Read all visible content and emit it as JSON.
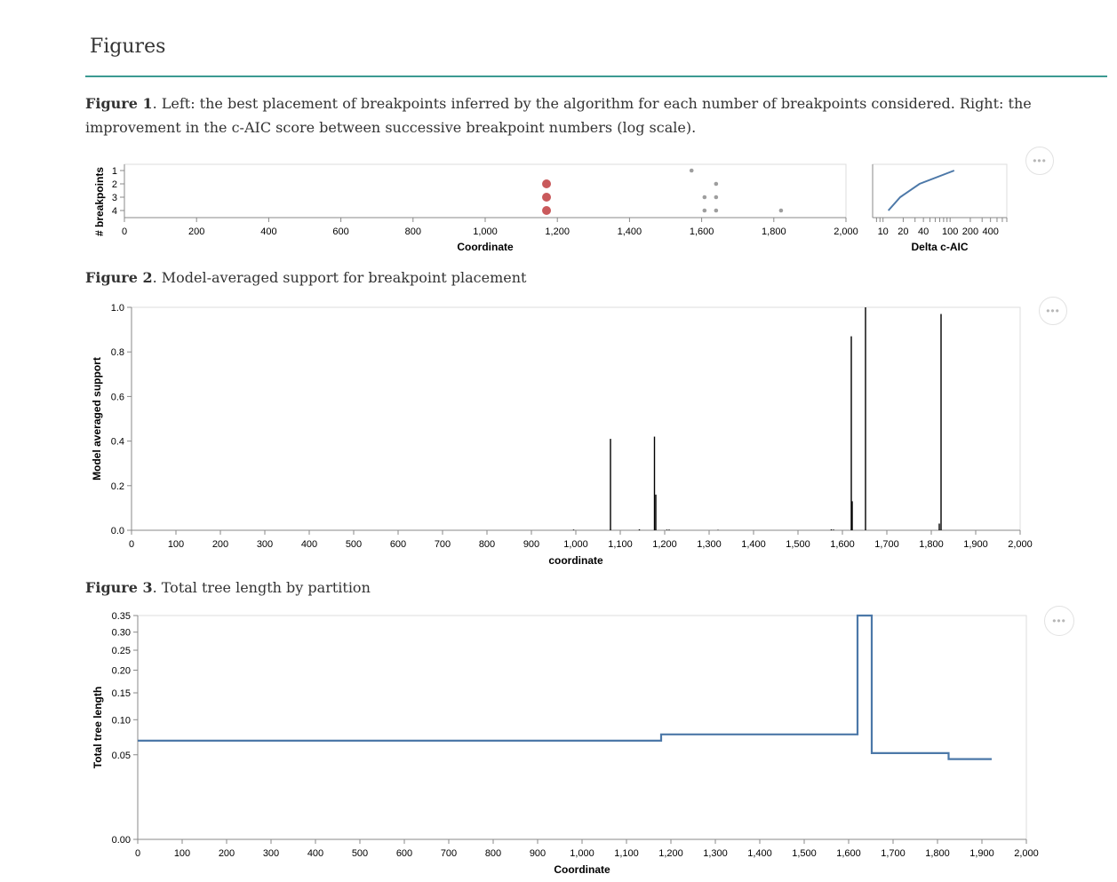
{
  "heading": "Figures",
  "figure1": {
    "label": "Figure 1",
    "caption": ". Left: the best placement of breakpoints inferred by the algorithm for each number of breakpoints considered. Right: the improvement in the c-AIC score between successive breakpoint numbers (log scale).",
    "menu_label": "•••"
  },
  "figure2": {
    "label": "Figure 2",
    "caption": ". Model-averaged support for breakpoint placement",
    "menu_label": "•••"
  },
  "figure3": {
    "label": "Figure 3",
    "caption": ". Total tree length by partition",
    "menu_label": "•••"
  },
  "chart_data": [
    {
      "type": "scatter",
      "xlabel": "Coordinate",
      "ylabel": "# breakpoints",
      "xlim": [
        0,
        2000
      ],
      "x_ticks": [
        "0",
        "200",
        "400",
        "600",
        "800",
        "1,000",
        "1,200",
        "1,400",
        "1,600",
        "1,800",
        "2,000"
      ],
      "y_ticks": [
        "1",
        "2",
        "3",
        "4"
      ],
      "points": [
        {
          "x": 1572,
          "y": 1,
          "color": "#9e9e9e",
          "size": "small"
        },
        {
          "x": 1170,
          "y": 2,
          "color": "#c9595b",
          "size": "large"
        },
        {
          "x": 1640,
          "y": 2,
          "color": "#9e9e9e",
          "size": "small"
        },
        {
          "x": 1170,
          "y": 3,
          "color": "#c9595b",
          "size": "large"
        },
        {
          "x": 1608,
          "y": 3,
          "color": "#9e9e9e",
          "size": "small"
        },
        {
          "x": 1640,
          "y": 3,
          "color": "#9e9e9e",
          "size": "small"
        },
        {
          "x": 1170,
          "y": 4,
          "color": "#c9595b",
          "size": "large"
        },
        {
          "x": 1608,
          "y": 4,
          "color": "#9e9e9e",
          "size": "small"
        },
        {
          "x": 1640,
          "y": 4,
          "color": "#9e9e9e",
          "size": "small"
        },
        {
          "x": 1820,
          "y": 4,
          "color": "#9e9e9e",
          "size": "small"
        }
      ]
    },
    {
      "type": "line",
      "scale": "log",
      "xlabel": "Delta c-AIC",
      "ylabel": "",
      "x_ticks": [
        "10",
        "20",
        "40",
        "100",
        "200",
        "400"
      ],
      "color": "#4c78a8",
      "points": [
        {
          "x": 12,
          "y": 4
        },
        {
          "x": 18,
          "y": 3
        },
        {
          "x": 35,
          "y": 2
        },
        {
          "x": 115,
          "y": 1
        }
      ]
    },
    {
      "type": "bar",
      "xlabel": "coordinate",
      "ylabel": "Model averaged support",
      "xlim": [
        0,
        2000
      ],
      "ylim": [
        0,
        1
      ],
      "x_ticks": [
        "0",
        "100",
        "200",
        "300",
        "400",
        "500",
        "600",
        "700",
        "800",
        "900",
        "1,000",
        "1,100",
        "1,200",
        "1,300",
        "1,400",
        "1,500",
        "1,600",
        "1,700",
        "1,800",
        "1,900",
        "2,000"
      ],
      "y_ticks": [
        "0.0",
        "0.2",
        "0.4",
        "0.6",
        "0.8",
        "1.0"
      ],
      "bars": [
        {
          "x": 995,
          "y": 0.003
        },
        {
          "x": 1078,
          "y": 0.41
        },
        {
          "x": 1143,
          "y": 0.004
        },
        {
          "x": 1177,
          "y": 0.42
        },
        {
          "x": 1180,
          "y": 0.16
        },
        {
          "x": 1205,
          "y": 0.003
        },
        {
          "x": 1210,
          "y": 0.003
        },
        {
          "x": 1320,
          "y": 0.002
        },
        {
          "x": 1575,
          "y": 0.004
        },
        {
          "x": 1580,
          "y": 0.003
        },
        {
          "x": 1620,
          "y": 0.87
        },
        {
          "x": 1622,
          "y": 0.13
        },
        {
          "x": 1652,
          "y": 1.0
        },
        {
          "x": 1818,
          "y": 0.03
        },
        {
          "x": 1822,
          "y": 0.97
        }
      ]
    },
    {
      "type": "line",
      "xlabel": "Coordinate",
      "ylabel": "Total tree length",
      "xlim": [
        0,
        2000
      ],
      "ylim": [
        0,
        0.35
      ],
      "x_ticks": [
        "0",
        "100",
        "200",
        "300",
        "400",
        "500",
        "600",
        "700",
        "800",
        "900",
        "1,000",
        "1,100",
        "1,200",
        "1,300",
        "1,400",
        "1,500",
        "1,600",
        "1,700",
        "1,800",
        "1,900",
        "2,000"
      ],
      "y_ticks": [
        "0.00",
        "0.05",
        "0.10",
        "0.15",
        "0.20",
        "0.25",
        "0.30",
        "0.35"
      ],
      "color": "#4c78a8",
      "segments": [
        {
          "x0": 0,
          "x1": 1178,
          "y": 0.068
        },
        {
          "x0": 1178,
          "x1": 1620,
          "y": 0.077
        },
        {
          "x0": 1620,
          "x1": 1652,
          "y": 0.35
        },
        {
          "x0": 1652,
          "x1": 1825,
          "y": 0.052
        },
        {
          "x0": 1825,
          "x1": 1922,
          "y": 0.045
        }
      ]
    }
  ]
}
